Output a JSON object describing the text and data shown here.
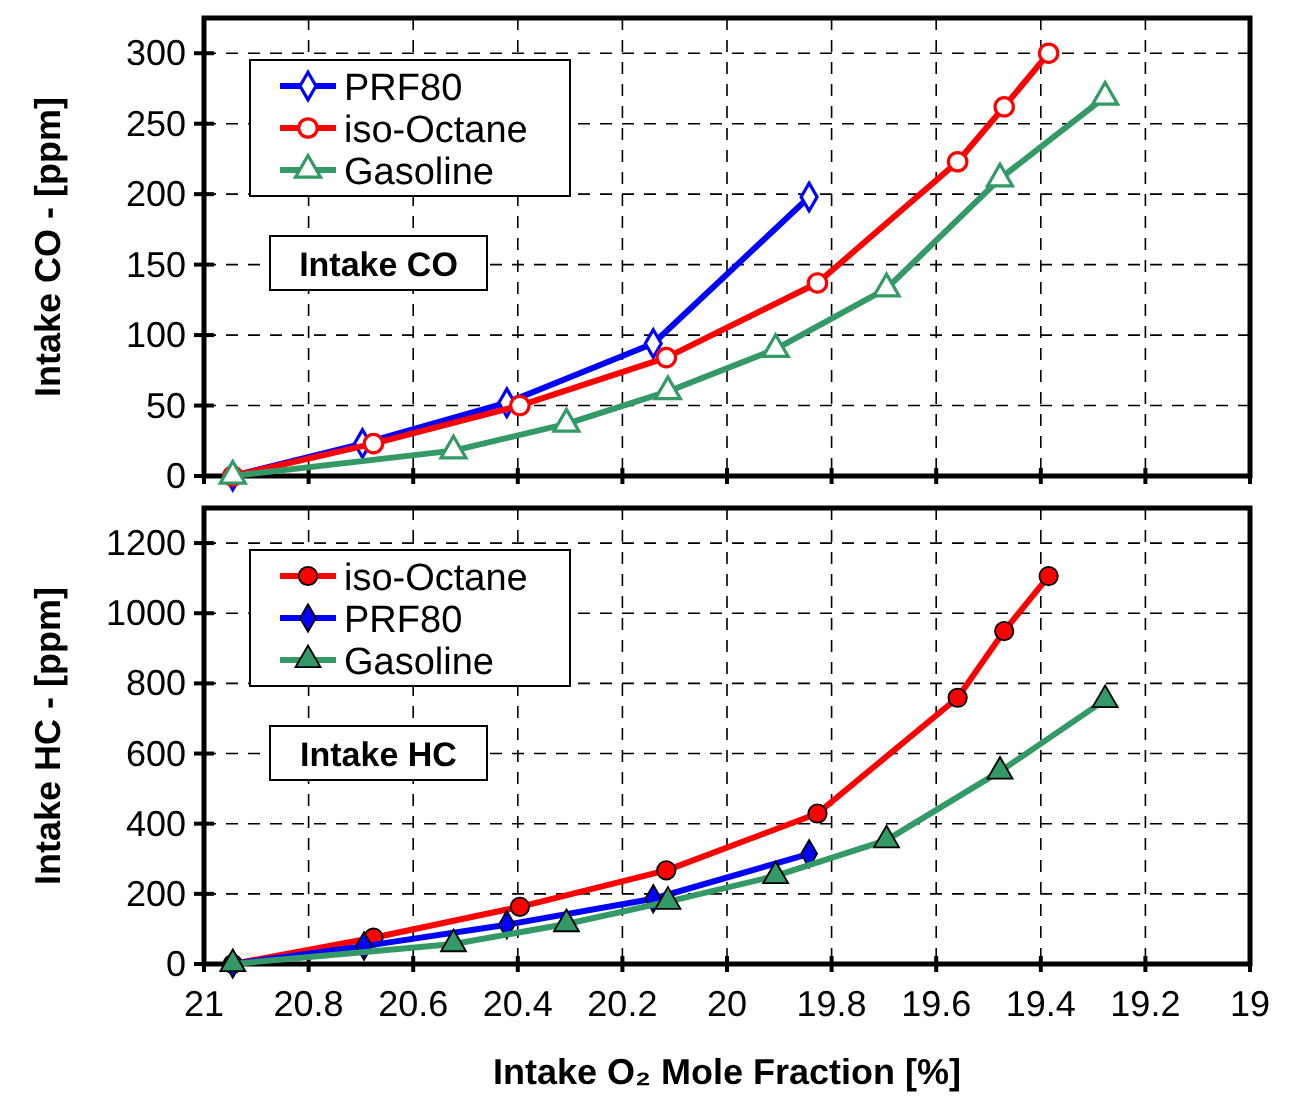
{
  "chart_data": [
    {
      "type": "line",
      "ylabel": "Intake CO - [ppm]",
      "xlim": [
        21,
        19
      ],
      "xticks": [
        21,
        20.8,
        20.6,
        20.4,
        20.2,
        20,
        19.8,
        19.6,
        19.4,
        19.2,
        19
      ],
      "ylim": [
        0,
        325
      ],
      "yticks": [
        0,
        50,
        100,
        150,
        200,
        250,
        300
      ],
      "tick_labels": "y",
      "grid": true,
      "legend": "top left",
      "line_style": "solid",
      "annotations": [
        "Intake CO"
      ],
      "series": [
        {
          "name": "PRF80",
          "color": "#0000ff",
          "marker": "diamond",
          "x": [
            20.945,
            20.697,
            20.421,
            20.141,
            19.843
          ],
          "values": [
            0,
            23,
            52,
            94,
            198
          ]
        },
        {
          "name": "iso-Octane",
          "color": "#ff0000",
          "marker": "circle",
          "x": [
            20.945,
            20.676,
            20.396,
            20.116,
            19.827,
            19.559,
            19.47,
            19.385
          ],
          "values": [
            0,
            23,
            50,
            84,
            137,
            223,
            262,
            300
          ]
        },
        {
          "name": "Gasoline",
          "color": "#339966",
          "marker": "triangle",
          "x": [
            20.945,
            20.523,
            20.307,
            20.113,
            19.907,
            19.695,
            19.478,
            19.277
          ],
          "values": [
            0,
            18,
            37,
            60,
            90,
            133,
            211,
            269
          ]
        }
      ]
    },
    {
      "type": "line",
      "xlabel": "Intake O₂ Mole Fraction [%]",
      "ylabel": "Intake HC - [ppm]",
      "xlim": [
        21,
        19
      ],
      "xticks": [
        21,
        20.8,
        20.6,
        20.4,
        20.2,
        20,
        19.8,
        19.6,
        19.4,
        19.2,
        19
      ],
      "ylim": [
        0,
        1300
      ],
      "yticks": [
        0,
        200,
        400,
        600,
        800,
        1000,
        1200
      ],
      "grid": true,
      "legend": "top left",
      "line_style": "solid",
      "annotations": [
        "Intake HC"
      ],
      "series": [
        {
          "name": "iso-Octane",
          "color": "#ff0000",
          "marker": "circle",
          "x": [
            20.945,
            20.676,
            20.396,
            20.116,
            19.827,
            19.559,
            19.47,
            19.385
          ],
          "values": [
            0,
            75,
            163,
            267,
            429,
            759,
            949,
            1106
          ]
        },
        {
          "name": "PRF80",
          "color": "#0000ff",
          "marker": "diamond",
          "x": [
            20.945,
            20.694,
            20.421,
            20.141,
            19.843
          ],
          "values": [
            0,
            51,
            112,
            186,
            314
          ]
        },
        {
          "name": "Gasoline",
          "color": "#339966",
          "marker": "triangle",
          "x": [
            20.945,
            20.523,
            20.307,
            20.113,
            19.907,
            19.695,
            19.478,
            19.277
          ],
          "values": [
            0,
            57,
            114,
            178,
            251,
            353,
            549,
            753
          ]
        }
      ]
    }
  ]
}
